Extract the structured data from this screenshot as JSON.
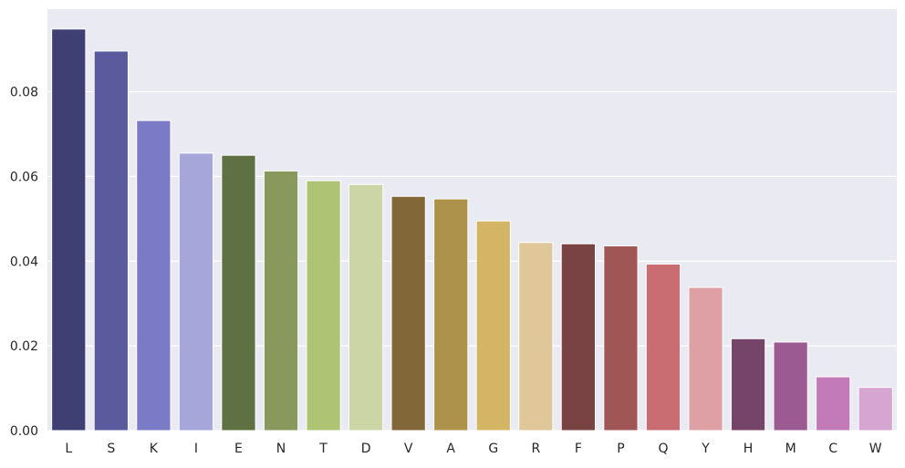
{
  "chart_data": {
    "type": "bar",
    "title": "",
    "xlabel": "",
    "ylabel": "",
    "categories": [
      "L",
      "S",
      "K",
      "I",
      "E",
      "N",
      "T",
      "D",
      "V",
      "A",
      "G",
      "R",
      "F",
      "P",
      "Q",
      "Y",
      "H",
      "M",
      "C",
      "W"
    ],
    "values": [
      0.0948,
      0.0896,
      0.0732,
      0.0655,
      0.065,
      0.0613,
      0.059,
      0.0581,
      0.0553,
      0.0547,
      0.0495,
      0.0444,
      0.0441,
      0.0436,
      0.0393,
      0.0338,
      0.0217,
      0.0209,
      0.0127,
      0.0102
    ],
    "colors": [
      "#3f3f73",
      "#5a5a9c",
      "#7a7ac6",
      "#a6a6d8",
      "#5f7142",
      "#89985c",
      "#aec474",
      "#cbd5a6",
      "#826839",
      "#ad924c",
      "#d4b465",
      "#dfc79a",
      "#7a4343",
      "#a15656",
      "#c96d73",
      "#dfa0a5",
      "#744469",
      "#9b5a91",
      "#c27ab8",
      "#d6a5d1"
    ],
    "ylim": [
      0,
      0.0995
    ],
    "yticks": [
      0.0,
      0.02,
      0.04,
      0.06,
      0.08
    ],
    "ytick_labels": [
      "0.00",
      "0.02",
      "0.04",
      "0.06",
      "0.08"
    ],
    "grid": true,
    "background": "#eaeaf2",
    "grid_color": "#ffffff",
    "legend": "none"
  }
}
